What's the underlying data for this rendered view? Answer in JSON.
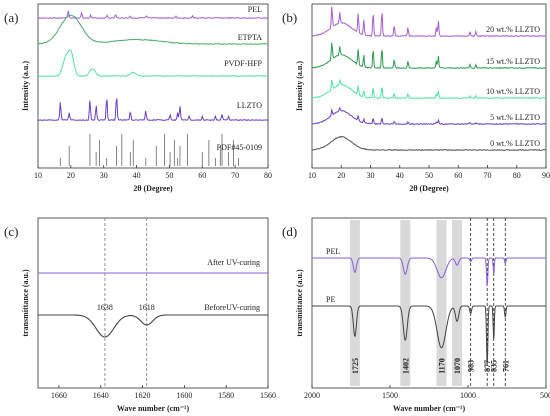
{
  "chart_data": [
    {
      "panel": "(a)",
      "type": "line",
      "xlabel": "2θ (Degree)",
      "ylabel": "Intensity (a.u.)",
      "xlim": [
        10,
        80
      ],
      "xticks": [
        "10",
        "20",
        "30",
        "40",
        "50",
        "60",
        "70",
        "80"
      ],
      "series": [
        {
          "name": "PEL",
          "color": "#a55fd0",
          "peaks": [
            [
              19.2,
              0.4
            ],
            [
              23.3,
              0.3
            ],
            [
              26,
              0.15
            ],
            [
              31,
              0.15
            ],
            [
              33.6,
              0.2
            ],
            [
              38,
              0.1
            ],
            [
              43,
              0.1
            ],
            [
              52,
              0.1
            ],
            [
              57,
              0.1
            ]
          ]
        },
        {
          "name": "ETPTA",
          "color": "#4ea96a",
          "peaks": [
            [
              20,
              1.6
            ]
          ]
        },
        {
          "name": "PVDF-HFP",
          "color": "#52e2a2",
          "peaks": [
            [
              18.3,
              0.9
            ],
            [
              20,
              1.3
            ],
            [
              26.6,
              0.4
            ],
            [
              39,
              0.2
            ]
          ]
        },
        {
          "name": "LLZTO",
          "color": "#6a3fc2",
          "peaks": [
            [
              16.8,
              1.0
            ],
            [
              19.5,
              0.4
            ],
            [
              25.8,
              1.1
            ],
            [
              27.7,
              0.8
            ],
            [
              30.9,
              1.3
            ],
            [
              33.9,
              1.4
            ],
            [
              38.1,
              0.5
            ],
            [
              42.8,
              0.5
            ],
            [
              50.2,
              0.3
            ],
            [
              52.5,
              0.4
            ],
            [
              53.2,
              0.8
            ],
            [
              56,
              0.2
            ],
            [
              60,
              0.2
            ],
            [
              64,
              0.2
            ],
            [
              66,
              0.3
            ],
            [
              68,
              0.2
            ]
          ]
        }
      ],
      "reference": {
        "name": "PDF#45-0109",
        "lines": [
          16.8,
          19.5,
          25.8,
          27.7,
          28.7,
          30.9,
          33.9,
          35.5,
          38.1,
          39,
          42.8,
          46,
          48.5,
          50.2,
          51.5,
          52.5,
          53.2,
          55.5,
          60,
          62,
          64,
          65.5,
          66,
          68,
          69.5,
          71
        ]
      }
    },
    {
      "panel": "(b)",
      "type": "line",
      "xlabel": "2θ (Degree)",
      "ylabel": "Intensity (a.u.)",
      "xlim": [
        10,
        90
      ],
      "xticks": [
        "10",
        "20",
        "30",
        "40",
        "50",
        "60",
        "70",
        "80",
        "90"
      ],
      "series": [
        {
          "name": "20 wt.% LLZTO",
          "color": "#a55fd0"
        },
        {
          "name": "15 wt.% LLZTO",
          "color": "#2e9a52"
        },
        {
          "name": "10 wt.% LLZTO",
          "color": "#52e2a2"
        },
        {
          "name": "5 wt.% LLZTO",
          "color": "#6a3fc2"
        },
        {
          "name": "0 wt.% LLZTO",
          "color": "#555555"
        }
      ]
    },
    {
      "panel": "(c)",
      "type": "line",
      "xlabel": "Wave number (cm⁻¹)",
      "ylabel": "transmittance (a.u.)",
      "xlim": [
        1670,
        1560
      ],
      "xticks": [
        "1660",
        "1640",
        "1620",
        "1600",
        "1580",
        "1560"
      ],
      "series": [
        {
          "name": "After UV-curing",
          "color": "#8a5fd8"
        },
        {
          "name": "BeforeUV-curing",
          "color": "#444444"
        }
      ],
      "annotations": [
        "1638",
        "1618"
      ],
      "dashed_lines": [
        1638,
        1618
      ]
    },
    {
      "panel": "(d)",
      "type": "line",
      "xlabel": "Wave number (cm⁻¹)",
      "ylabel": "transmittance (a.u.)",
      "xlim": [
        2000,
        500
      ],
      "xticks": [
        "2000",
        "1500",
        "1000",
        "500"
      ],
      "series": [
        {
          "name": "PEL",
          "color": "#8a5fd8"
        },
        {
          "name": "PE",
          "color": "#444444"
        }
      ],
      "bands": [
        1725,
        1402,
        1170,
        1070
      ],
      "dashed": [
        983,
        877,
        835,
        761
      ],
      "band_labels": [
        "1725",
        "1402",
        "1170",
        "1070",
        "983",
        "877",
        "835",
        "761"
      ]
    }
  ]
}
